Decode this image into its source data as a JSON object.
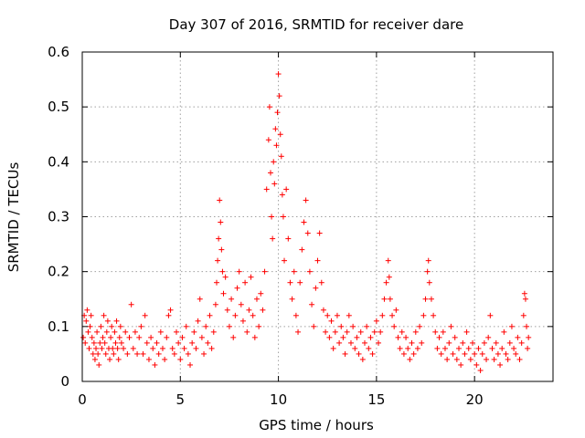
{
  "chart_data": {
    "type": "scatter",
    "title": "Day 307 of 2016, SRMTID for receiver dare",
    "xlabel": "GPS time / hours",
    "ylabel": "SRMTID / TECUs",
    "xlim": [
      0,
      24
    ],
    "ylim": [
      0,
      0.6
    ],
    "x_ticks": [
      0,
      5,
      10,
      15,
      20
    ],
    "y_ticks": [
      0,
      0.1,
      0.2,
      0.3,
      0.4,
      0.5,
      0.6
    ],
    "x_tick_labels": [
      "0",
      "5",
      "10",
      "15",
      "20"
    ],
    "y_tick_labels": [
      "0",
      "0.1",
      "0.2",
      "0.3",
      "0.4",
      "0.5",
      "0.6"
    ],
    "grid": true,
    "marker": "+",
    "color": "#ff0000",
    "series": [
      {
        "name": "SRMTID",
        "points": [
          [
            0.05,
            0.08
          ],
          [
            0.1,
            0.12
          ],
          [
            0.15,
            0.07
          ],
          [
            0.2,
            0.11
          ],
          [
            0.25,
            0.13
          ],
          [
            0.3,
            0.09
          ],
          [
            0.35,
            0.06
          ],
          [
            0.4,
            0.1
          ],
          [
            0.45,
            0.12
          ],
          [
            0.5,
            0.08
          ],
          [
            0.55,
            0.05
          ],
          [
            0.6,
            0.07
          ],
          [
            0.65,
            0.04
          ],
          [
            0.7,
            0.06
          ],
          [
            0.75,
            0.09
          ],
          [
            0.8,
            0.05
          ],
          [
            0.85,
            0.03
          ],
          [
            0.9,
            0.07
          ],
          [
            0.95,
            0.1
          ],
          [
            1.0,
            0.06
          ],
          [
            1.05,
            0.08
          ],
          [
            1.1,
            0.12
          ],
          [
            1.15,
            0.07
          ],
          [
            1.2,
            0.05
          ],
          [
            1.25,
            0.09
          ],
          [
            1.3,
            0.11
          ],
          [
            1.35,
            0.06
          ],
          [
            1.4,
            0.04
          ],
          [
            1.45,
            0.08
          ],
          [
            1.5,
            0.1
          ],
          [
            1.55,
            0.06
          ],
          [
            1.6,
            0.05
          ],
          [
            1.65,
            0.09
          ],
          [
            1.7,
            0.07
          ],
          [
            1.75,
            0.11
          ],
          [
            1.8,
            0.06
          ],
          [
            1.85,
            0.04
          ],
          [
            1.9,
            0.08
          ],
          [
            1.95,
            0.1
          ],
          [
            2.0,
            0.07
          ],
          [
            2.1,
            0.06
          ],
          [
            2.2,
            0.09
          ],
          [
            2.3,
            0.05
          ],
          [
            2.4,
            0.08
          ],
          [
            2.5,
            0.14
          ],
          [
            2.6,
            0.06
          ],
          [
            2.7,
            0.09
          ],
          [
            2.8,
            0.05
          ],
          [
            2.9,
            0.08
          ],
          [
            3.0,
            0.1
          ],
          [
            3.1,
            0.05
          ],
          [
            3.2,
            0.12
          ],
          [
            3.3,
            0.07
          ],
          [
            3.4,
            0.04
          ],
          [
            3.5,
            0.08
          ],
          [
            3.6,
            0.06
          ],
          [
            3.7,
            0.03
          ],
          [
            3.8,
            0.07
          ],
          [
            3.9,
            0.05
          ],
          [
            4.0,
            0.09
          ],
          [
            4.1,
            0.06
          ],
          [
            4.2,
            0.04
          ],
          [
            4.3,
            0.08
          ],
          [
            4.4,
            0.12
          ],
          [
            4.5,
            0.13
          ],
          [
            4.6,
            0.06
          ],
          [
            4.7,
            0.05
          ],
          [
            4.8,
            0.09
          ],
          [
            4.9,
            0.07
          ],
          [
            5.0,
            0.04
          ],
          [
            5.1,
            0.08
          ],
          [
            5.2,
            0.06
          ],
          [
            5.3,
            0.1
          ],
          [
            5.4,
            0.05
          ],
          [
            5.5,
            0.03
          ],
          [
            5.6,
            0.07
          ],
          [
            5.7,
            0.09
          ],
          [
            5.8,
            0.06
          ],
          [
            5.9,
            0.11
          ],
          [
            6.0,
            0.15
          ],
          [
            6.1,
            0.08
          ],
          [
            6.2,
            0.05
          ],
          [
            6.3,
            0.1
          ],
          [
            6.4,
            0.07
          ],
          [
            6.5,
            0.12
          ],
          [
            6.6,
            0.06
          ],
          [
            6.7,
            0.09
          ],
          [
            6.8,
            0.14
          ],
          [
            6.85,
            0.18
          ],
          [
            6.9,
            0.22
          ],
          [
            6.95,
            0.26
          ],
          [
            7.0,
            0.33
          ],
          [
            7.05,
            0.29
          ],
          [
            7.1,
            0.24
          ],
          [
            7.15,
            0.2
          ],
          [
            7.2,
            0.16
          ],
          [
            7.3,
            0.19
          ],
          [
            7.4,
            0.13
          ],
          [
            7.5,
            0.1
          ],
          [
            7.6,
            0.15
          ],
          [
            7.7,
            0.08
          ],
          [
            7.8,
            0.12
          ],
          [
            7.9,
            0.17
          ],
          [
            8.0,
            0.2
          ],
          [
            8.1,
            0.14
          ],
          [
            8.2,
            0.11
          ],
          [
            8.3,
            0.18
          ],
          [
            8.4,
            0.09
          ],
          [
            8.5,
            0.13
          ],
          [
            8.6,
            0.19
          ],
          [
            8.7,
            0.12
          ],
          [
            8.8,
            0.08
          ],
          [
            8.9,
            0.15
          ],
          [
            9.0,
            0.1
          ],
          [
            9.1,
            0.16
          ],
          [
            9.2,
            0.13
          ],
          [
            9.3,
            0.2
          ],
          [
            9.4,
            0.35
          ],
          [
            9.5,
            0.44
          ],
          [
            9.55,
            0.5
          ],
          [
            9.6,
            0.38
          ],
          [
            9.65,
            0.3
          ],
          [
            9.7,
            0.26
          ],
          [
            9.75,
            0.4
          ],
          [
            9.8,
            0.36
          ],
          [
            9.85,
            0.46
          ],
          [
            9.9,
            0.43
          ],
          [
            9.95,
            0.49
          ],
          [
            10.0,
            0.56
          ],
          [
            10.05,
            0.52
          ],
          [
            10.1,
            0.45
          ],
          [
            10.15,
            0.41
          ],
          [
            10.2,
            0.34
          ],
          [
            10.25,
            0.3
          ],
          [
            10.3,
            0.22
          ],
          [
            10.4,
            0.35
          ],
          [
            10.5,
            0.26
          ],
          [
            10.6,
            0.18
          ],
          [
            10.7,
            0.15
          ],
          [
            10.8,
            0.2
          ],
          [
            10.9,
            0.12
          ],
          [
            11.0,
            0.09
          ],
          [
            11.1,
            0.18
          ],
          [
            11.2,
            0.24
          ],
          [
            11.3,
            0.29
          ],
          [
            11.4,
            0.33
          ],
          [
            11.5,
            0.27
          ],
          [
            11.6,
            0.2
          ],
          [
            11.7,
            0.14
          ],
          [
            11.8,
            0.1
          ],
          [
            11.9,
            0.17
          ],
          [
            12.0,
            0.22
          ],
          [
            12.1,
            0.27
          ],
          [
            12.2,
            0.18
          ],
          [
            12.3,
            0.13
          ],
          [
            12.4,
            0.09
          ],
          [
            12.5,
            0.12
          ],
          [
            12.6,
            0.08
          ],
          [
            12.7,
            0.11
          ],
          [
            12.8,
            0.06
          ],
          [
            12.9,
            0.09
          ],
          [
            13.0,
            0.12
          ],
          [
            13.1,
            0.07
          ],
          [
            13.2,
            0.1
          ],
          [
            13.3,
            0.08
          ],
          [
            13.4,
            0.05
          ],
          [
            13.5,
            0.09
          ],
          [
            13.6,
            0.12
          ],
          [
            13.7,
            0.07
          ],
          [
            13.8,
            0.1
          ],
          [
            13.9,
            0.06
          ],
          [
            14.0,
            0.08
          ],
          [
            14.1,
            0.05
          ],
          [
            14.2,
            0.09
          ],
          [
            14.3,
            0.04
          ],
          [
            14.4,
            0.07
          ],
          [
            14.5,
            0.1
          ],
          [
            14.6,
            0.06
          ],
          [
            14.7,
            0.08
          ],
          [
            14.8,
            0.05
          ],
          [
            14.9,
            0.09
          ],
          [
            15.0,
            0.11
          ],
          [
            15.1,
            0.07
          ],
          [
            15.2,
            0.09
          ],
          [
            15.3,
            0.12
          ],
          [
            15.4,
            0.15
          ],
          [
            15.5,
            0.18
          ],
          [
            15.6,
            0.22
          ],
          [
            15.65,
            0.19
          ],
          [
            15.7,
            0.15
          ],
          [
            15.8,
            0.12
          ],
          [
            15.9,
            0.1
          ],
          [
            16.0,
            0.13
          ],
          [
            16.1,
            0.08
          ],
          [
            16.2,
            0.06
          ],
          [
            16.3,
            0.09
          ],
          [
            16.4,
            0.05
          ],
          [
            16.5,
            0.08
          ],
          [
            16.6,
            0.06
          ],
          [
            16.7,
            0.04
          ],
          [
            16.8,
            0.07
          ],
          [
            16.9,
            0.05
          ],
          [
            17.0,
            0.09
          ],
          [
            17.1,
            0.06
          ],
          [
            17.2,
            0.1
          ],
          [
            17.3,
            0.07
          ],
          [
            17.4,
            0.12
          ],
          [
            17.5,
            0.15
          ],
          [
            17.6,
            0.2
          ],
          [
            17.65,
            0.22
          ],
          [
            17.7,
            0.18
          ],
          [
            17.8,
            0.15
          ],
          [
            17.9,
            0.12
          ],
          [
            18.0,
            0.09
          ],
          [
            18.1,
            0.06
          ],
          [
            18.2,
            0.08
          ],
          [
            18.3,
            0.05
          ],
          [
            18.4,
            0.09
          ],
          [
            18.5,
            0.06
          ],
          [
            18.6,
            0.04
          ],
          [
            18.7,
            0.07
          ],
          [
            18.8,
            0.1
          ],
          [
            18.9,
            0.05
          ],
          [
            19.0,
            0.08
          ],
          [
            19.1,
            0.04
          ],
          [
            19.2,
            0.06
          ],
          [
            19.3,
            0.03
          ],
          [
            19.4,
            0.07
          ],
          [
            19.5,
            0.05
          ],
          [
            19.6,
            0.09
          ],
          [
            19.7,
            0.06
          ],
          [
            19.8,
            0.04
          ],
          [
            19.9,
            0.07
          ],
          [
            20.0,
            0.05
          ],
          [
            20.1,
            0.03
          ],
          [
            20.2,
            0.06
          ],
          [
            20.3,
            0.02
          ],
          [
            20.4,
            0.05
          ],
          [
            20.5,
            0.07
          ],
          [
            20.6,
            0.04
          ],
          [
            20.7,
            0.08
          ],
          [
            20.8,
            0.12
          ],
          [
            20.9,
            0.06
          ],
          [
            21.0,
            0.04
          ],
          [
            21.1,
            0.07
          ],
          [
            21.2,
            0.05
          ],
          [
            21.3,
            0.03
          ],
          [
            21.4,
            0.06
          ],
          [
            21.5,
            0.09
          ],
          [
            21.6,
            0.05
          ],
          [
            21.7,
            0.04
          ],
          [
            21.8,
            0.07
          ],
          [
            21.9,
            0.1
          ],
          [
            22.0,
            0.06
          ],
          [
            22.1,
            0.05
          ],
          [
            22.2,
            0.08
          ],
          [
            22.3,
            0.04
          ],
          [
            22.4,
            0.07
          ],
          [
            22.5,
            0.12
          ],
          [
            22.55,
            0.16
          ],
          [
            22.6,
            0.15
          ],
          [
            22.65,
            0.1
          ],
          [
            22.7,
            0.06
          ],
          [
            22.75,
            0.08
          ]
        ]
      }
    ]
  }
}
